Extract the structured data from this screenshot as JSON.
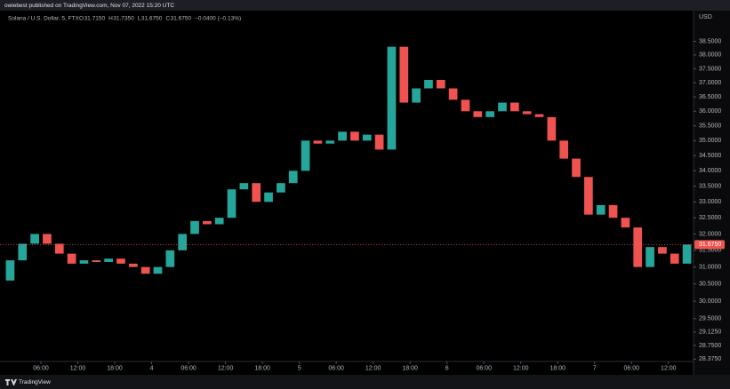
{
  "header": {
    "publisher": "owiebest published on TradingView.com, Nov 07, 2022 15:20 UTC"
  },
  "legend": {
    "symbol": "Solana / U.S. Dollar, 5, FTX",
    "items": [
      {
        "label": "O",
        "value": "31.7150"
      },
      {
        "label": "H",
        "value": "31.7350"
      },
      {
        "label": "L",
        "value": "31.6750"
      },
      {
        "label": "C",
        "value": "31.6750"
      }
    ],
    "change": "−0.0400 (−0.13%)"
  },
  "footer": {
    "brand": "TradingView"
  },
  "chart_data": {
    "type": "candlestick",
    "currency": "USD",
    "log_scale": true,
    "grid": false,
    "up_color": "#26a69a",
    "down_color": "#ef5350",
    "x": [
      1,
      3,
      5,
      7,
      9,
      11,
      13,
      15,
      17,
      19,
      21,
      23,
      25,
      27,
      29,
      31,
      33,
      35,
      37,
      39,
      41,
      43,
      45,
      47,
      49,
      51,
      53,
      55,
      57,
      59,
      61,
      63,
      65,
      67,
      69,
      71,
      73,
      75,
      77,
      79,
      81,
      83,
      85,
      87,
      89,
      91,
      93,
      95,
      97,
      99,
      101,
      103,
      105,
      107,
      109,
      111
    ],
    "open": [
      30.6,
      31.2,
      31.7,
      32.0,
      31.7,
      31.4,
      31.1,
      31.2,
      31.15,
      31.25,
      31.1,
      31.0,
      30.8,
      31.0,
      31.5,
      32.0,
      32.4,
      32.3,
      32.5,
      33.4,
      33.6,
      33.0,
      33.3,
      33.6,
      34.0,
      35.0,
      34.9,
      35.0,
      35.3,
      35.0,
      35.2,
      34.7,
      38.3,
      36.3,
      36.8,
      37.1,
      36.8,
      36.4,
      36.0,
      35.8,
      36.0,
      36.3,
      36.0,
      35.9,
      35.8,
      35.0,
      34.4,
      33.8,
      32.6,
      32.9,
      32.5,
      32.2,
      31.0,
      31.6,
      31.4,
      31.1
    ],
    "close": [
      31.2,
      31.7,
      32.0,
      31.7,
      31.4,
      31.1,
      31.2,
      31.15,
      31.25,
      31.1,
      31.0,
      30.8,
      31.0,
      31.5,
      32.0,
      32.4,
      32.3,
      32.5,
      33.4,
      33.6,
      33.0,
      33.3,
      33.6,
      34.0,
      35.0,
      34.9,
      35.0,
      35.3,
      35.0,
      35.2,
      34.7,
      38.3,
      36.3,
      36.8,
      37.1,
      36.8,
      36.4,
      36.0,
      35.8,
      36.0,
      36.3,
      36.0,
      35.9,
      35.8,
      35.0,
      34.4,
      33.8,
      32.6,
      32.9,
      32.5,
      32.2,
      31.0,
      31.6,
      31.4,
      31.1,
      31.675
    ],
    "last_price": 31.675,
    "last_price_label": "31.6750",
    "xlim": [
      0,
      112
    ],
    "ylim": [
      28.0,
      39.55
    ],
    "xticks": [
      {
        "value": 6,
        "label": "06:00"
      },
      {
        "value": 12,
        "label": "12:00"
      },
      {
        "value": 18,
        "label": "18:00"
      },
      {
        "value": 24,
        "label": "4"
      },
      {
        "value": 30,
        "label": "06:00"
      },
      {
        "value": 36,
        "label": "12:00"
      },
      {
        "value": 42,
        "label": "18:00"
      },
      {
        "value": 48,
        "label": "5"
      },
      {
        "value": 54,
        "label": "06:00"
      },
      {
        "value": 60,
        "label": "12:00"
      },
      {
        "value": 66,
        "label": "18:00"
      },
      {
        "value": 72,
        "label": "6"
      },
      {
        "value": 78,
        "label": "06:00"
      },
      {
        "value": 84,
        "label": "12:00"
      },
      {
        "value": 90,
        "label": "18:00"
      },
      {
        "value": 96,
        "label": "7"
      },
      {
        "value": 102,
        "label": "06:00"
      },
      {
        "value": 108,
        "label": "12:00"
      }
    ],
    "yticks": [
      {
        "value": 38.5,
        "label": "38.5000"
      },
      {
        "value": 38.0,
        "label": "38.0000"
      },
      {
        "value": 37.5,
        "label": "37.5000"
      },
      {
        "value": 37.0,
        "label": "37.0000"
      },
      {
        "value": 36.5,
        "label": "36.5000"
      },
      {
        "value": 36.0,
        "label": "36.0000"
      },
      {
        "value": 35.5,
        "label": "35.5000"
      },
      {
        "value": 35.0,
        "label": "35.0000"
      },
      {
        "value": 34.5,
        "label": "34.5000"
      },
      {
        "value": 34.0,
        "label": "34.0000"
      },
      {
        "value": 33.5,
        "label": "33.5000"
      },
      {
        "value": 33.0,
        "label": "33.0000"
      },
      {
        "value": 32.5,
        "label": "32.5000"
      },
      {
        "value": 32.0,
        "label": "32.0000"
      },
      {
        "value": 31.5,
        "label": "31.5000"
      },
      {
        "value": 31.0,
        "label": "31.0000"
      },
      {
        "value": 30.5,
        "label": "30.5000"
      },
      {
        "value": 30.0,
        "label": "30.0000"
      },
      {
        "value": 29.5,
        "label": "29.5000"
      },
      {
        "value": 29.125,
        "label": "29.1250"
      },
      {
        "value": 28.75,
        "label": "28.7500"
      },
      {
        "value": 28.375,
        "label": "28.3750"
      }
    ]
  }
}
